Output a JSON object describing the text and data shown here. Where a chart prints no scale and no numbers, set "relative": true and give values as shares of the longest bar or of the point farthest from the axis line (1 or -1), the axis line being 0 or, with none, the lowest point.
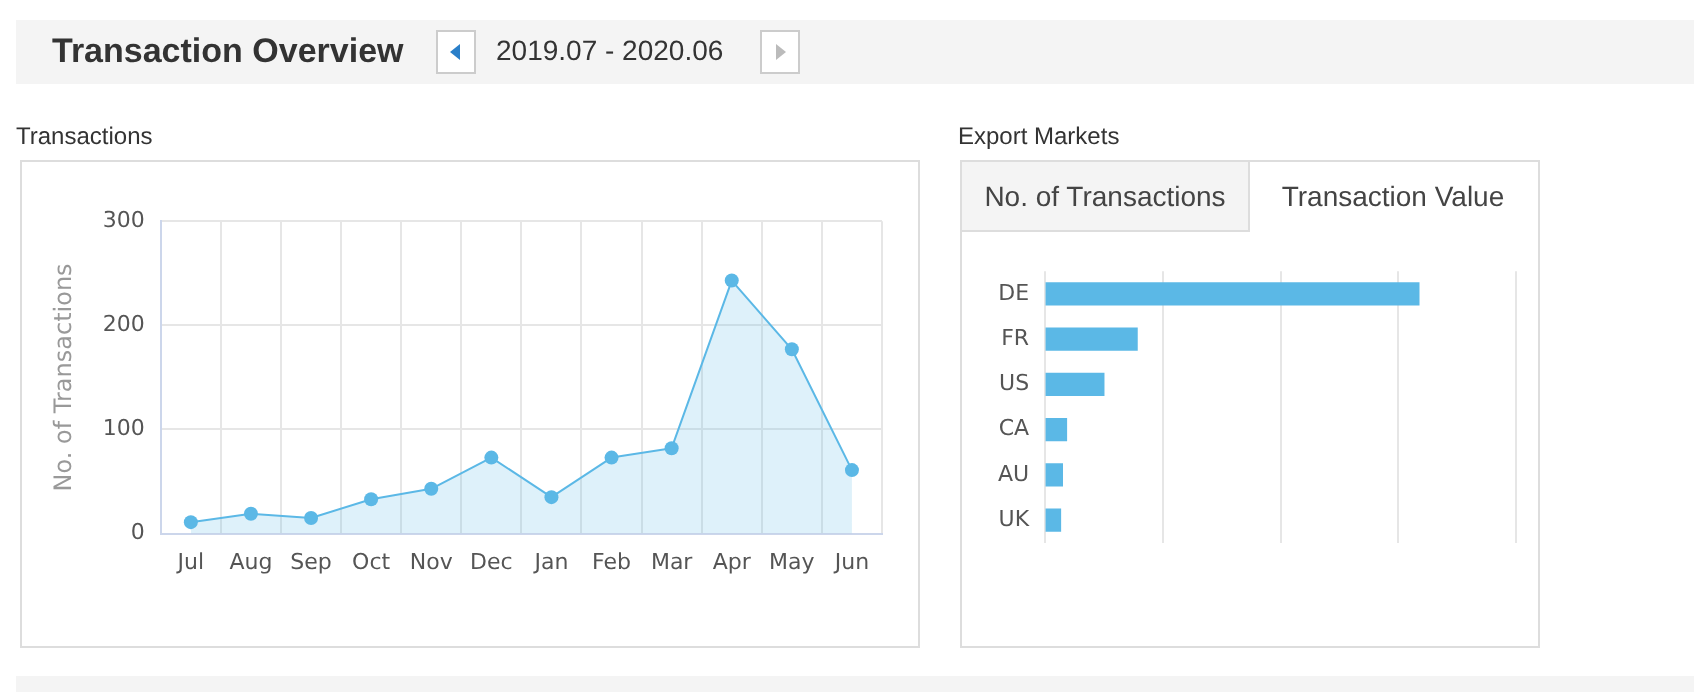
{
  "chart_data": [
    {
      "type": "other",
      "title": "Transaction Overview",
      "subtitle": "2019.07 - 2020.06"
    },
    {
      "type": "area",
      "title": "Transactions",
      "ylabel": "No. of Transactions",
      "categories": [
        "Jul",
        "Aug",
        "Sep",
        "Oct",
        "Nov",
        "Dec",
        "Jan",
        "Feb",
        "Mar",
        "Apr",
        "May",
        "Jun"
      ],
      "series": [
        {
          "color": "#5bb8e6",
          "values": [
            11,
            19,
            15,
            33,
            43,
            73,
            35,
            73,
            82,
            243,
            177,
            61
          ]
        }
      ],
      "ylim": [
        0,
        300
      ],
      "yticks": [
        0,
        100,
        200,
        300
      ],
      "grid": true,
      "marker": "circle",
      "legend": false
    },
    {
      "type": "bar",
      "orientation": "horizontal",
      "relative": true,
      "title": "Export Markets",
      "annotations": [
        "No. of Transactions",
        "Transaction Value"
      ],
      "categories": [
        "DE",
        "FR",
        "US",
        "CA",
        "AU",
        "UK"
      ],
      "series": [
        {
          "color": "#5bb8e6",
          "values": [
            1,
            0.246,
            0.157,
            0.057,
            0.046,
            0.041
          ]
        }
      ],
      "grid": "x",
      "legend": false
    }
  ]
}
